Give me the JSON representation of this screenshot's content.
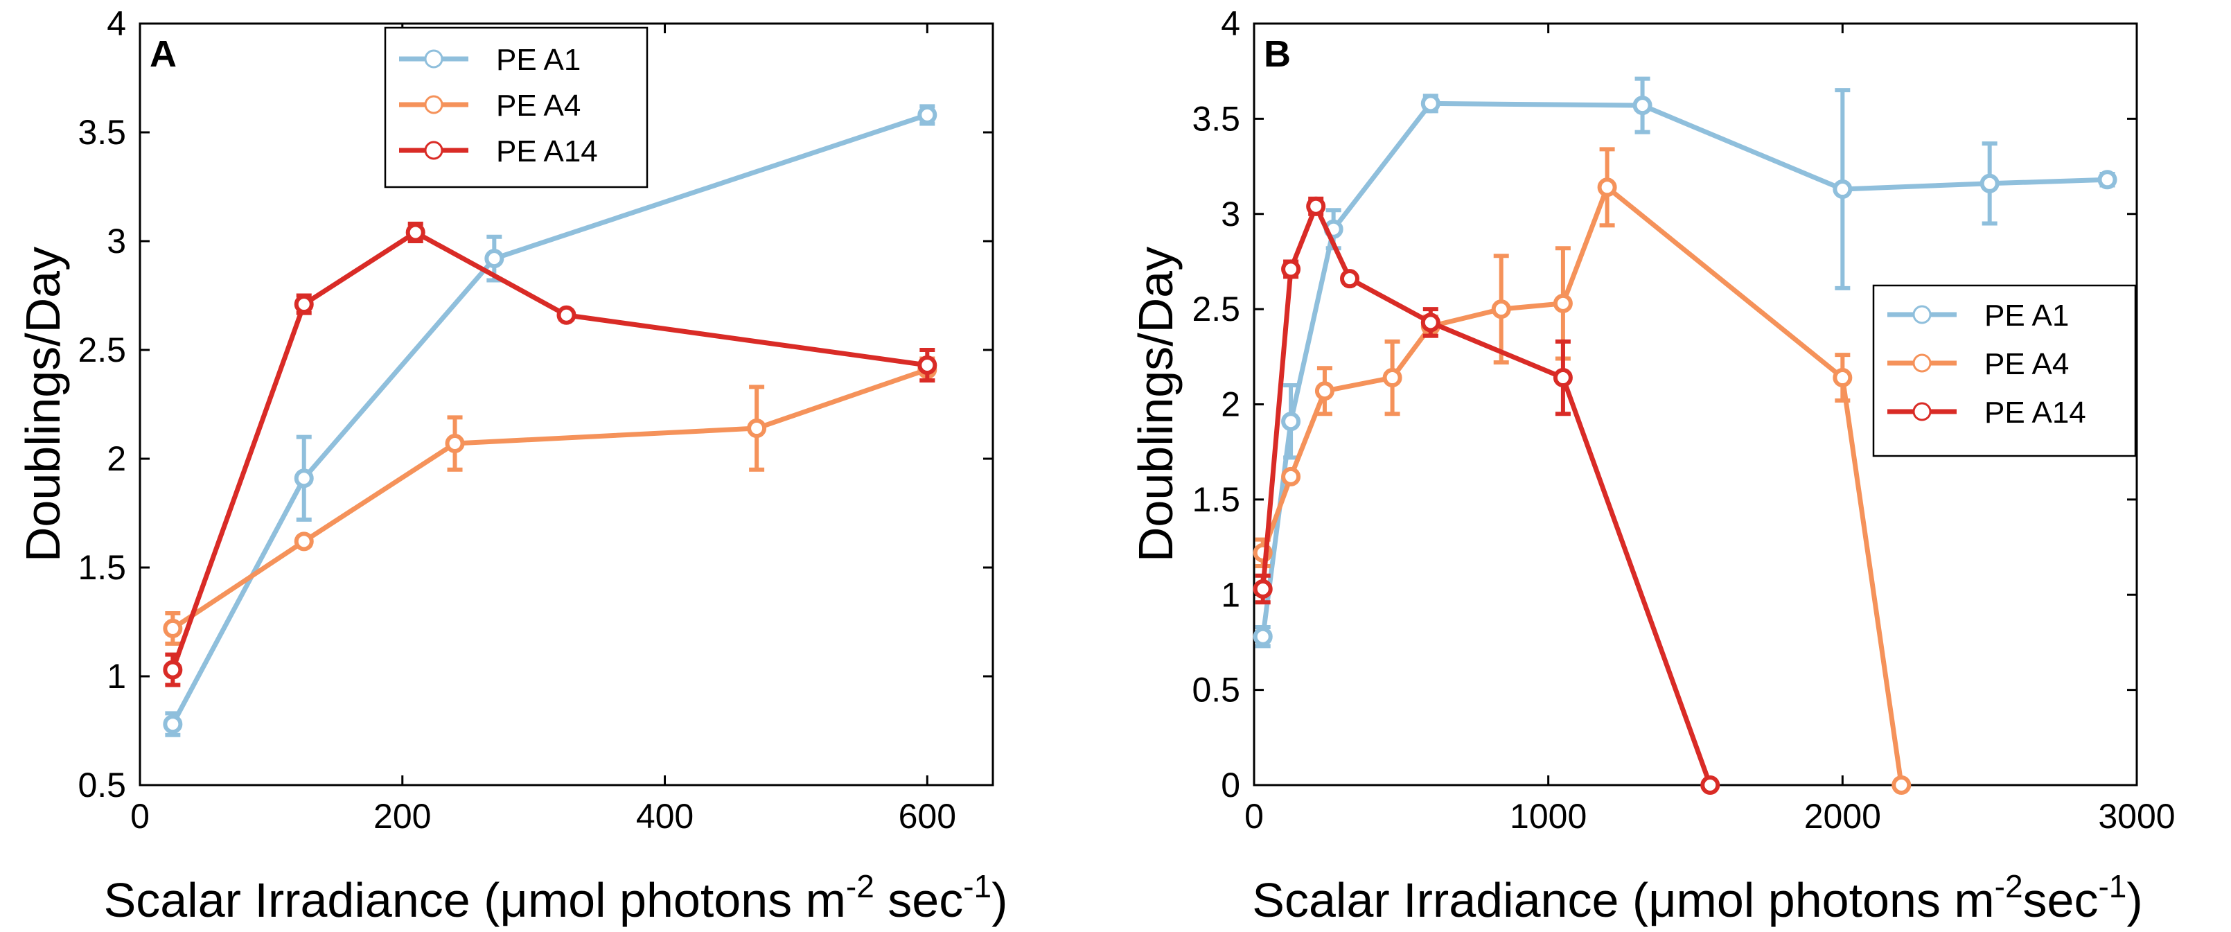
{
  "chart_data": [
    {
      "type": "line",
      "panel_label": "A",
      "xlabel_main": "Scalar Irradiance (",
      "xlabel_mu": "μ",
      "xlabel_mid": "mol photons m",
      "xlabel_sup1": "-2",
      "xlabel_mid2": " sec",
      "xlabel_sup2": "-1",
      "xlabel_end": ")",
      "ylabel": "Doublings/Day",
      "xlim": [
        0,
        650
      ],
      "ylim": [
        0.5,
        4
      ],
      "xticks": [
        0,
        200,
        400,
        600
      ],
      "xtick_labels": [
        "0",
        "200",
        "400",
        "600"
      ],
      "yticks": [
        0.5,
        1,
        1.5,
        2,
        2.5,
        3,
        3.5,
        4
      ],
      "ytick_labels": [
        "0.5",
        "1",
        "1.5",
        "2",
        "2.5",
        "3",
        "3.5",
        "4"
      ],
      "legend_position": "top-center",
      "series": [
        {
          "name": "PE A1",
          "color": "#8fbfdc",
          "x": [
            25,
            125,
            270,
            600
          ],
          "y": [
            0.78,
            1.91,
            2.92,
            3.58
          ],
          "err": [
            0.05,
            0.19,
            0.1,
            0.04
          ]
        },
        {
          "name": "PE A4",
          "color": "#f5925a",
          "x": [
            25,
            125,
            240,
            470,
            600
          ],
          "y": [
            1.22,
            1.62,
            2.07,
            2.14,
            2.41
          ],
          "err": [
            0.07,
            0.02,
            0.12,
            0.19,
            0.05
          ]
        },
        {
          "name": "PE A14",
          "color": "#d92b26",
          "x": [
            25,
            125,
            210,
            325,
            600
          ],
          "y": [
            1.03,
            2.71,
            3.04,
            2.66,
            2.43
          ],
          "err": [
            0.07,
            0.04,
            0.04,
            0.02,
            0.07
          ]
        }
      ]
    },
    {
      "type": "line",
      "panel_label": "B",
      "xlabel_main": "Scalar Irradiance (",
      "xlabel_mu": "μ",
      "xlabel_mid": "mol photons m",
      "xlabel_sup1": "-2",
      "xlabel_mid2": "sec",
      "xlabel_sup2": "-1",
      "xlabel_end": ")",
      "ylabel": "Doublings/Day",
      "xlim": [
        0,
        3000
      ],
      "ylim": [
        0,
        4
      ],
      "xticks": [
        0,
        1000,
        2000,
        3000
      ],
      "xtick_labels": [
        "0",
        "1000",
        "2000",
        "3000"
      ],
      "yticks": [
        0,
        0.5,
        1,
        1.5,
        2,
        2.5,
        3,
        3.5,
        4
      ],
      "ytick_labels": [
        "0",
        "0.5",
        "1",
        "1.5",
        "2",
        "2.5",
        "3",
        "3.5",
        "4"
      ],
      "legend_position": "right",
      "series": [
        {
          "name": "PE A1",
          "color": "#8fbfdc",
          "x": [
            30,
            125,
            270,
            600,
            1320,
            2000,
            2500,
            2900
          ],
          "y": [
            0.78,
            1.91,
            2.92,
            3.58,
            3.57,
            3.13,
            3.16,
            3.18
          ],
          "err": [
            0.05,
            0.19,
            0.1,
            0.04,
            0.14,
            0.52,
            0.21,
            0.03
          ]
        },
        {
          "name": "PE A4",
          "color": "#f5925a",
          "x": [
            30,
            125,
            240,
            470,
            600,
            840,
            1050,
            1200,
            2000,
            2200
          ],
          "y": [
            1.22,
            1.62,
            2.07,
            2.14,
            2.41,
            2.5,
            2.53,
            3.14,
            2.14,
            0
          ],
          "err": [
            0.07,
            0.02,
            0.12,
            0.19,
            0.05,
            0.28,
            0.29,
            0.2,
            0.12,
            0
          ]
        },
        {
          "name": "PE A14",
          "color": "#d92b26",
          "x": [
            30,
            125,
            210,
            325,
            600,
            1050,
            1550
          ],
          "y": [
            1.03,
            2.71,
            3.04,
            2.66,
            2.43,
            2.14,
            0
          ],
          "err": [
            0.07,
            0.04,
            0.04,
            0.02,
            0.07,
            0.19,
            0
          ]
        }
      ]
    }
  ]
}
